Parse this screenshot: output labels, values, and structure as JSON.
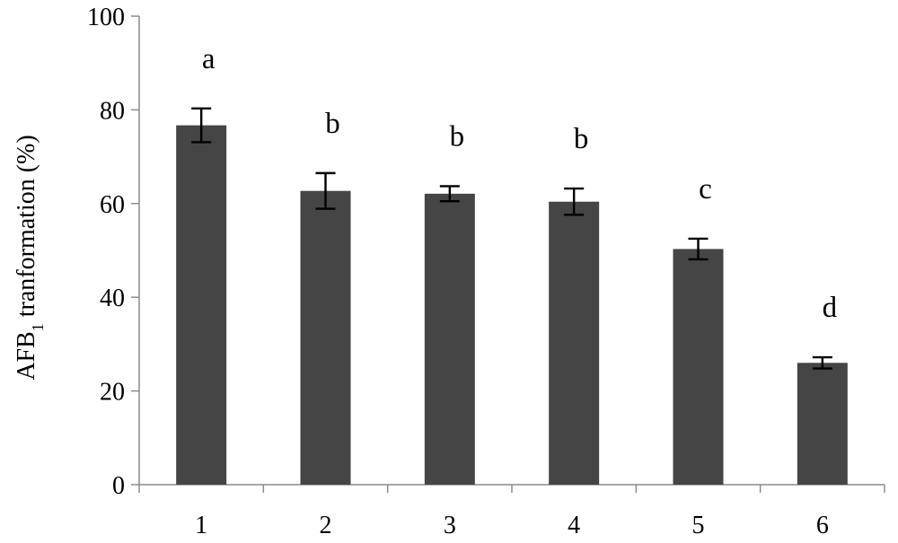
{
  "chart_data": {
    "type": "bar",
    "title": "",
    "xlabel": "",
    "ylabel": {
      "prefix": "AFB",
      "subscript": "1",
      "suffix": " tranformation (%)"
    },
    "categories": [
      "1",
      "2",
      "3",
      "4",
      "5",
      "6"
    ],
    "values": [
      76.7,
      62.7,
      62.1,
      60.4,
      50.3,
      26.0
    ],
    "errors": [
      3.6,
      3.8,
      1.6,
      2.8,
      2.2,
      1.2
    ],
    "significance_labels": [
      "a",
      "b",
      "b",
      "b",
      "c",
      "d"
    ],
    "ylim": [
      0,
      100
    ],
    "yticks": [
      "0",
      "20",
      "40",
      "60",
      "80",
      "100"
    ],
    "grid": false,
    "legend": "none",
    "colors": {
      "bar": "#454545",
      "axis": "#8c8c8c",
      "error_bar": "#000000"
    }
  }
}
